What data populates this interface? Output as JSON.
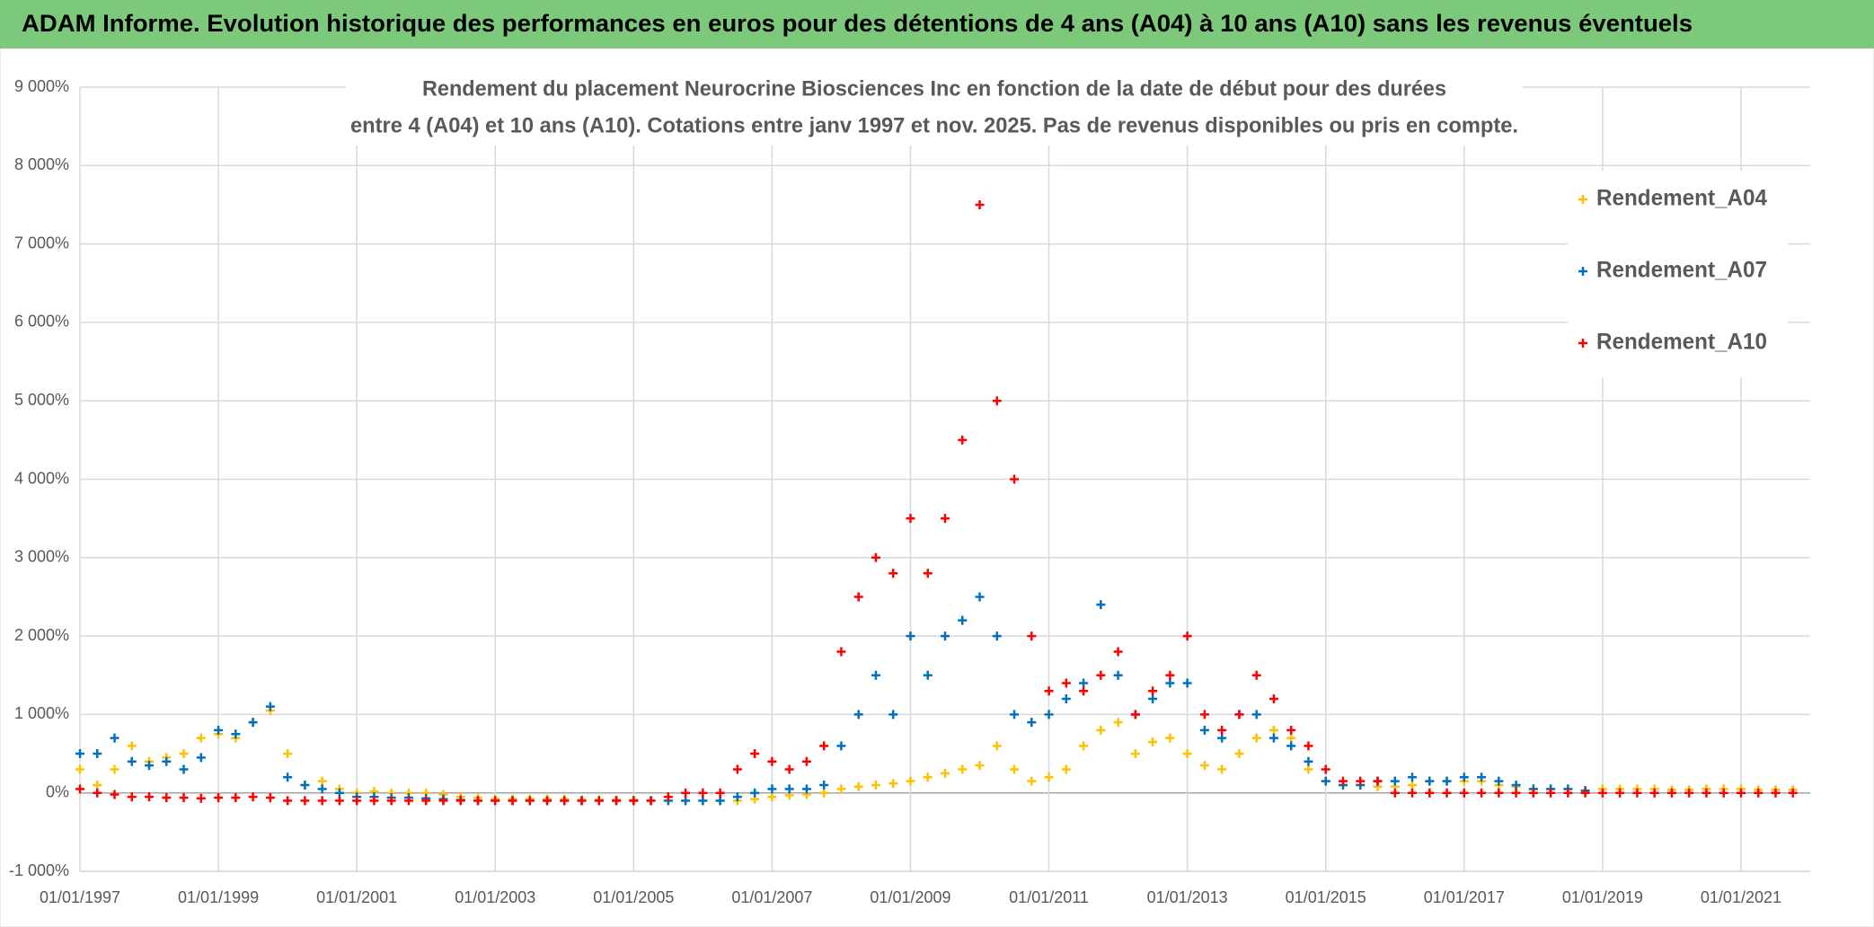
{
  "chart_data": {
    "type": "scatter",
    "title": "ADAM Informe. Evolution historique des performances en euros pour des détentions de 4 ans (A04) à 10 ans (A10) sans les revenus éventuels",
    "subtitle": [
      "Rendement du placement Neurocrine Biosciences Inc en fonction de la date de début pour des durées",
      "entre 4 (A04) et 10 ans (A10). Cotations entre janv 1997 et nov. 2025. Pas de revenus disponibles ou pris en compte."
    ],
    "x": [
      "01/01/1997",
      "01/04/1997",
      "01/07/1997",
      "01/10/1997",
      "01/01/1998",
      "01/04/1998",
      "01/07/1998",
      "01/10/1998",
      "01/01/1999",
      "01/04/1999",
      "01/07/1999",
      "01/10/1999",
      "01/01/2000",
      "01/04/2000",
      "01/07/2000",
      "01/10/2000",
      "01/01/2001",
      "01/04/2001",
      "01/07/2001",
      "01/10/2001",
      "01/01/2002",
      "01/04/2002",
      "01/07/2002",
      "01/10/2002",
      "01/01/2003",
      "01/04/2003",
      "01/07/2003",
      "01/10/2003",
      "01/01/2004",
      "01/04/2004",
      "01/07/2004",
      "01/10/2004",
      "01/01/2005",
      "01/04/2005",
      "01/07/2005",
      "01/10/2005",
      "01/01/2006",
      "01/04/2006",
      "01/07/2006",
      "01/10/2006",
      "01/01/2007",
      "01/04/2007",
      "01/07/2007",
      "01/10/2007",
      "01/01/2008",
      "01/04/2008",
      "01/07/2008",
      "01/10/2008",
      "01/01/2009",
      "01/04/2009",
      "01/07/2009",
      "01/10/2009",
      "01/01/2010",
      "01/04/2010",
      "01/07/2010",
      "01/10/2010",
      "01/01/2011",
      "01/04/2011",
      "01/07/2011",
      "01/10/2011",
      "01/01/2012",
      "01/04/2012",
      "01/07/2012",
      "01/10/2012",
      "01/01/2013",
      "01/04/2013",
      "01/07/2013",
      "01/10/2013",
      "01/01/2014",
      "01/04/2014",
      "01/07/2014",
      "01/10/2014",
      "01/01/2015",
      "01/04/2015",
      "01/07/2015",
      "01/10/2015",
      "01/01/2016",
      "01/04/2016",
      "01/07/2016",
      "01/10/2016",
      "01/01/2017",
      "01/04/2017",
      "01/07/2017",
      "01/10/2017",
      "01/01/2018",
      "01/04/2018",
      "01/07/2018",
      "01/10/2018",
      "01/01/2019",
      "01/04/2019",
      "01/07/2019",
      "01/10/2019",
      "01/01/2020",
      "01/04/2020",
      "01/07/2020",
      "01/10/2020",
      "01/01/2021",
      "01/04/2021",
      "01/07/2021",
      "01/10/2021"
    ],
    "series": [
      {
        "name": "Rendement_A04",
        "color": "#ffc000",
        "values": [
          300,
          100,
          300,
          600,
          400,
          450,
          500,
          700,
          750,
          700,
          900,
          1050,
          500,
          100,
          150,
          50,
          0,
          20,
          0,
          0,
          0,
          -20,
          -50,
          -60,
          -80,
          -80,
          -80,
          -80,
          -80,
          -90,
          -90,
          -90,
          -90,
          -100,
          -100,
          -100,
          -100,
          -100,
          -100,
          -80,
          -50,
          -30,
          -20,
          0,
          50,
          80,
          100,
          120,
          150,
          200,
          250,
          300,
          350,
          600,
          300,
          150,
          200,
          300,
          600,
          800,
          900,
          500,
          650,
          700,
          500,
          350,
          300,
          500,
          700,
          800,
          700,
          300,
          150,
          100,
          100,
          80,
          80,
          100,
          150,
          150,
          150,
          150,
          100,
          80,
          50,
          50,
          50,
          30,
          50,
          50,
          50,
          50,
          40,
          40,
          50,
          50,
          50,
          40,
          40,
          40
        ]
      },
      {
        "name": "Rendement_A07",
        "color": "#0070c0",
        "values": [
          500,
          500,
          700,
          400,
          350,
          400,
          300,
          450,
          800,
          750,
          900,
          1100,
          200,
          100,
          50,
          0,
          -50,
          -50,
          -60,
          -60,
          -70,
          -80,
          -90,
          -100,
          -100,
          -100,
          -100,
          -100,
          -100,
          -100,
          -100,
          -100,
          -100,
          -100,
          -100,
          -100,
          -100,
          -100,
          -50,
          0,
          50,
          50,
          50,
          100,
          600,
          1000,
          1500,
          1000,
          2000,
          1500,
          2000,
          2200,
          2500,
          2000,
          1000,
          900,
          1000,
          1200,
          1400,
          2400,
          1500,
          1000,
          1200,
          1400,
          1400,
          800,
          700,
          1000,
          1000,
          700,
          600,
          400,
          150,
          100,
          100,
          150,
          150,
          200,
          150,
          150,
          200,
          200,
          150,
          100,
          50,
          50,
          50,
          30,
          null,
          null,
          null,
          null,
          null,
          null,
          null,
          null,
          null,
          null,
          null,
          null
        ]
      },
      {
        "name": "Rendement_A10",
        "color": "#ff0000",
        "values": [
          50,
          0,
          -20,
          -50,
          -50,
          -60,
          -60,
          -70,
          -60,
          -60,
          -50,
          -60,
          -100,
          -100,
          -100,
          -100,
          -100,
          -100,
          -100,
          -100,
          -100,
          -100,
          -100,
          -100,
          -100,
          -100,
          -100,
          -100,
          -100,
          -100,
          -100,
          -100,
          -100,
          -100,
          -50,
          0,
          0,
          0,
          300,
          500,
          400,
          300,
          400,
          600,
          1800,
          2500,
          3000,
          2800,
          3500,
          2800,
          3500,
          4500,
          7500,
          5000,
          4000,
          2000,
          1300,
          1400,
          1300,
          1500,
          1800,
          1000,
          1300,
          1500,
          2000,
          1000,
          800,
          1000,
          1500,
          1200,
          800,
          600,
          300,
          150,
          150,
          150,
          0,
          0,
          0,
          0,
          0,
          0,
          0,
          0,
          0,
          0,
          0,
          0,
          0,
          0,
          0,
          0,
          0,
          0,
          0,
          0,
          0,
          0,
          0,
          0
        ]
      }
    ],
    "xlim": [
      "01/01/1997",
      "01/01/2022"
    ],
    "xticks": [
      "01/01/1997",
      "01/01/1999",
      "01/01/2001",
      "01/01/2003",
      "01/01/2005",
      "01/01/2007",
      "01/01/2009",
      "01/01/2011",
      "01/01/2013",
      "01/01/2015",
      "01/01/2017",
      "01/01/2019",
      "01/01/2021"
    ],
    "ylim": [
      -1000,
      9000
    ],
    "yticks": [
      {
        "value": -1000,
        "label": "-1 000%"
      },
      {
        "value": 0,
        "label": "0%"
      },
      {
        "value": 1000,
        "label": "1 000%"
      },
      {
        "value": 2000,
        "label": "2 000%"
      },
      {
        "value": 3000,
        "label": "3 000%"
      },
      {
        "value": 4000,
        "label": "4 000%"
      },
      {
        "value": 5000,
        "label": "5 000%"
      },
      {
        "value": 6000,
        "label": "6 000%"
      },
      {
        "value": 7000,
        "label": "7 000%"
      },
      {
        "value": 8000,
        "label": "8 000%"
      },
      {
        "value": 9000,
        "label": "9 000%"
      }
    ],
    "grid": true,
    "legend": "top-right"
  }
}
